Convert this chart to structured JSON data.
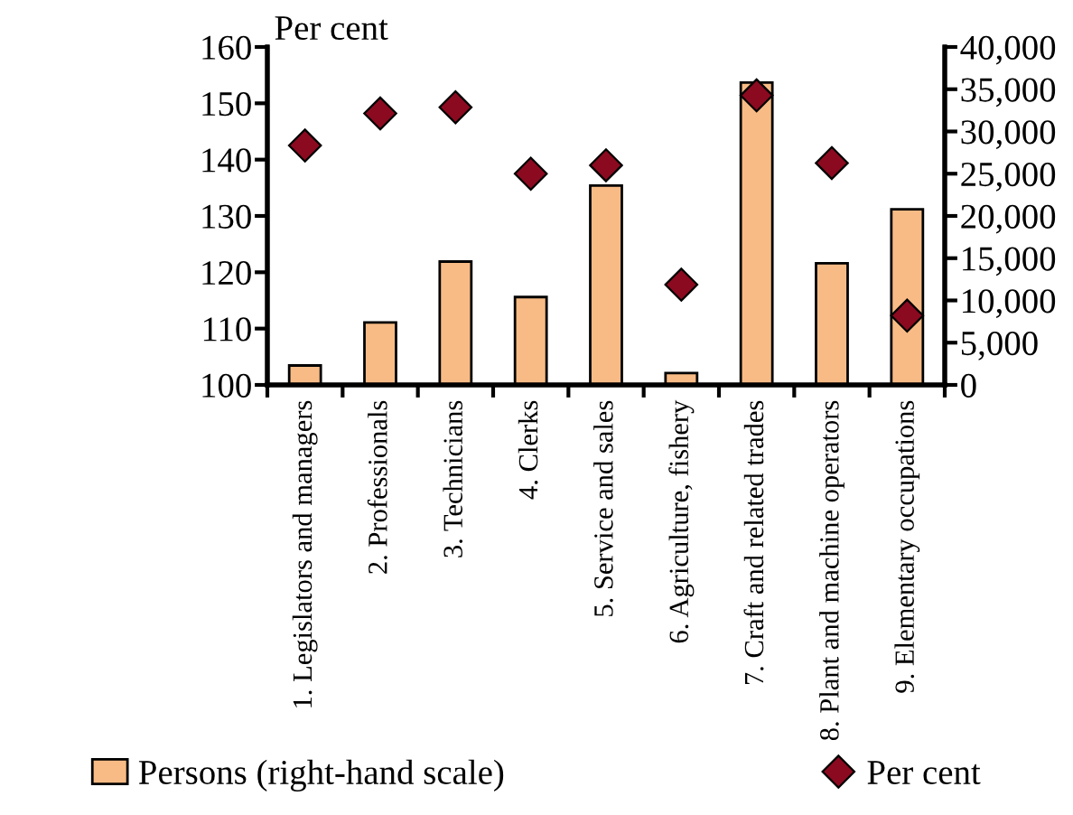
{
  "chart_data": {
    "type": "bar",
    "ylabel": "Per cent",
    "categories": [
      "1. Legislators and managers",
      "2. Professionals",
      "3. Technicians",
      "4. Clerks",
      "5. Service and sales",
      "6. Agriculture, fishery",
      "7. Craft and related trades",
      "8. Plant and machine operators",
      "9. Elementary occupations"
    ],
    "series": [
      {
        "name": "Persons (right-hand scale)",
        "axis": "y2",
        "color": "#f8bb85",
        "values": [
          2300,
          7400,
          14600,
          10400,
          23600,
          1400,
          35800,
          14400,
          20800
        ]
      },
      {
        "name": "Per cent",
        "type": "scatter",
        "marker": "diamond",
        "color": "#8b0a20",
        "values": [
          142.5,
          148.2,
          149.3,
          137.5,
          139,
          117.8,
          151.4,
          139.4,
          112.3
        ]
      }
    ],
    "ylim": [
      100,
      160
    ],
    "yticks": [
      100,
      110,
      120,
      130,
      140,
      150,
      160
    ],
    "y2lim": [
      0,
      40000
    ],
    "y2ticks": [
      {
        "value": 0,
        "label": "0"
      },
      {
        "value": 5000,
        "label": "5,000"
      },
      {
        "value": 10000,
        "label": "10,000"
      },
      {
        "value": 15000,
        "label": "15,000"
      },
      {
        "value": 20000,
        "label": "20,000"
      },
      {
        "value": 25000,
        "label": "25,000"
      },
      {
        "value": 30000,
        "label": "30,000"
      },
      {
        "value": 35000,
        "label": "35,000"
      },
      {
        "value": 40000,
        "label": "40,000"
      }
    ],
    "grid": false,
    "legend": "bottom"
  }
}
